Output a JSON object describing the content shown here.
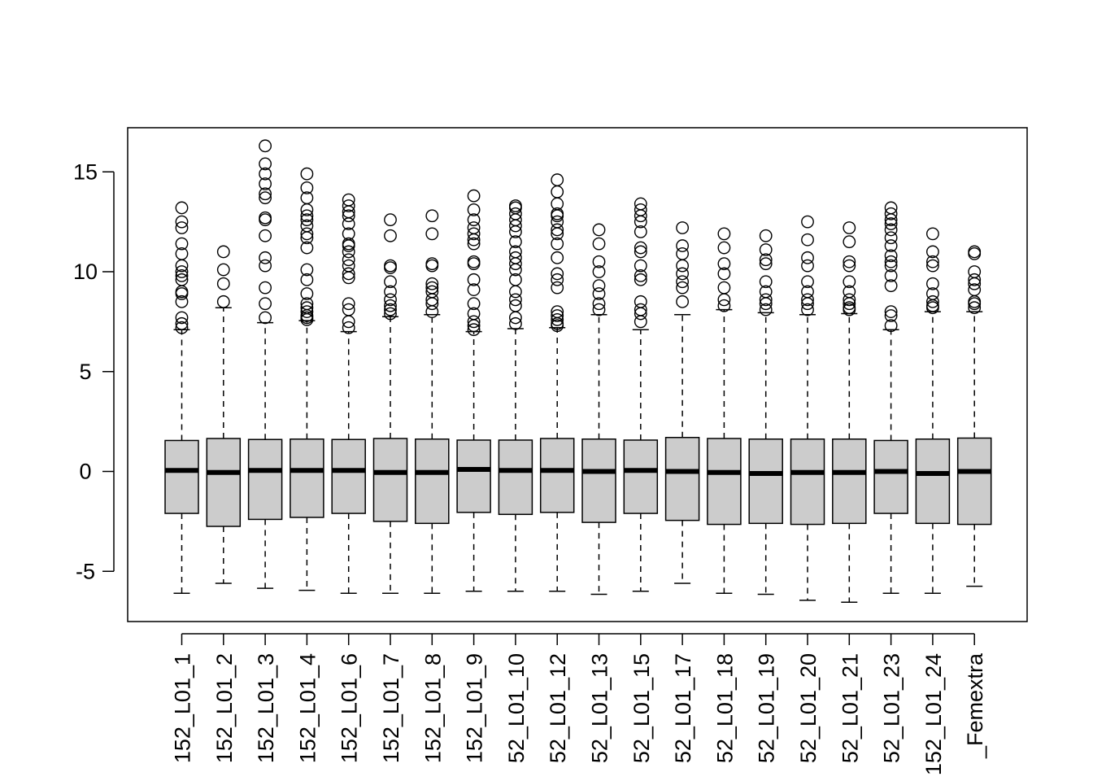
{
  "chart_data": {
    "type": "boxplot",
    "title": "",
    "xlabel": "",
    "ylabel": "",
    "ylim": [
      -7.5,
      17.2
    ],
    "yticks": [
      -5,
      0,
      5,
      10,
      15
    ],
    "ytick_labels": [
      "-5",
      "0",
      "5",
      "10",
      "15"
    ],
    "box_fill": "#cccccc",
    "line_color": "#000000",
    "categories": [
      "152_L01_1",
      "152_L01_2",
      "152_L01_3",
      "152_L01_4",
      "152_L01_6",
      "152_L01_7",
      "152_L01_8",
      "152_L01_9",
      "52_L01_10",
      "52_L01_12",
      "52_L01_13",
      "52_L01_15",
      "52_L01_17",
      "52_L01_18",
      "52_L01_19",
      "52_L01_20",
      "52_L01_21",
      "52_L01_23",
      "152_L01_24",
      "_Femextra"
    ],
    "boxes": [
      {
        "whisker_low": -6.1,
        "q1": -2.1,
        "median": 0.05,
        "q3": 1.55,
        "whisker_high": 7.1,
        "outliers": [
          7.2,
          7.4,
          7.7,
          8.5,
          8.9,
          9.0,
          9.6,
          9.8,
          10.0,
          10.3,
          10.9,
          11.4,
          12.2,
          12.5,
          13.2
        ]
      },
      {
        "whisker_low": -5.6,
        "q1": -2.75,
        "median": -0.05,
        "q3": 1.65,
        "whisker_high": 8.2,
        "outliers": [
          8.5,
          9.4,
          10.1,
          11.0
        ]
      },
      {
        "whisker_low": -5.85,
        "q1": -2.4,
        "median": 0.05,
        "q3": 1.6,
        "whisker_high": 7.45,
        "outliers": [
          7.7,
          8.4,
          9.2,
          10.3,
          10.7,
          11.8,
          12.6,
          12.7,
          13.7,
          13.9,
          14.4,
          14.9,
          15.4,
          16.3
        ]
      },
      {
        "whisker_low": -5.95,
        "q1": -2.3,
        "median": 0.05,
        "q3": 1.62,
        "whisker_high": 7.55,
        "outliers": [
          7.6,
          7.7,
          7.8,
          8.0,
          8.2,
          8.4,
          8.9,
          9.6,
          10.1,
          11.2,
          11.7,
          11.9,
          12.3,
          12.6,
          12.8,
          13.1,
          13.7,
          14.2,
          14.9
        ]
      },
      {
        "whisker_low": -6.1,
        "q1": -2.1,
        "median": 0.05,
        "q3": 1.6,
        "whisker_high": 7.0,
        "outliers": [
          7.2,
          7.5,
          8.1,
          8.4,
          9.7,
          9.9,
          10.3,
          10.6,
          11.0,
          11.3,
          11.4,
          11.9,
          12.4,
          12.8,
          13.0,
          13.3,
          13.6
        ]
      },
      {
        "whisker_low": -6.1,
        "q1": -2.5,
        "median": -0.05,
        "q3": 1.65,
        "whisker_high": 7.75,
        "outliers": [
          7.9,
          8.1,
          8.3,
          8.6,
          9.0,
          9.5,
          10.2,
          10.3,
          11.8,
          12.6
        ]
      },
      {
        "whisker_low": -6.1,
        "q1": -2.6,
        "median": -0.05,
        "q3": 1.62,
        "whisker_high": 7.85,
        "outliers": [
          8.0,
          8.4,
          8.6,
          9.0,
          9.2,
          9.4,
          10.3,
          10.4,
          11.9,
          12.8
        ]
      },
      {
        "whisker_low": -6.0,
        "q1": -2.05,
        "median": 0.1,
        "q3": 1.57,
        "whisker_high": 7.0,
        "outliers": [
          7.1,
          7.3,
          7.5,
          7.9,
          8.4,
          9.1,
          9.6,
          10.4,
          10.5,
          11.4,
          11.6,
          11.9,
          12.2,
          12.6,
          13.1,
          13.8
        ]
      },
      {
        "whisker_low": -6.0,
        "q1": -2.15,
        "median": 0.05,
        "q3": 1.57,
        "whisker_high": 7.15,
        "outliers": [
          7.4,
          7.7,
          8.3,
          8.6,
          9.0,
          9.6,
          10.1,
          10.4,
          10.7,
          11.0,
          11.5,
          12.0,
          12.3,
          12.6,
          12.9,
          13.2,
          13.3
        ]
      },
      {
        "whisker_low": -6.0,
        "q1": -2.05,
        "median": 0.05,
        "q3": 1.65,
        "whisker_high": 7.2,
        "outliers": [
          7.3,
          7.4,
          7.6,
          7.8,
          8.0,
          9.2,
          9.6,
          9.9,
          10.7,
          11.4,
          11.9,
          12.1,
          12.5,
          12.8,
          12.9,
          13.4,
          14.0,
          14.6
        ]
      },
      {
        "whisker_low": -6.15,
        "q1": -2.55,
        "median": 0.0,
        "q3": 1.62,
        "whisker_high": 7.85,
        "outliers": [
          8.1,
          8.4,
          8.9,
          9.3,
          10.0,
          10.5,
          11.4,
          12.1
        ]
      },
      {
        "whisker_low": -6.0,
        "q1": -2.1,
        "median": 0.05,
        "q3": 1.57,
        "whisker_high": 7.1,
        "outliers": [
          7.5,
          7.9,
          8.1,
          8.5,
          9.6,
          9.8,
          10.3,
          11.0,
          11.2,
          12.0,
          12.5,
          12.8,
          13.1,
          13.4
        ]
      },
      {
        "whisker_low": -5.6,
        "q1": -2.45,
        "median": 0.0,
        "q3": 1.7,
        "whisker_high": 7.85,
        "outliers": [
          8.5,
          9.2,
          9.5,
          9.9,
          10.3,
          10.9,
          11.3,
          12.2
        ]
      },
      {
        "whisker_low": -6.1,
        "q1": -2.65,
        "median": -0.05,
        "q3": 1.65,
        "whisker_high": 8.1,
        "outliers": [
          8.3,
          8.6,
          9.2,
          9.9,
          10.4,
          11.2,
          11.9
        ]
      },
      {
        "whisker_low": -6.15,
        "q1": -2.6,
        "median": -0.1,
        "q3": 1.62,
        "whisker_high": 7.95,
        "outliers": [
          8.1,
          8.4,
          8.6,
          9.0,
          9.5,
          10.4,
          10.6,
          11.1,
          11.8
        ]
      },
      {
        "whisker_low": -6.45,
        "q1": -2.65,
        "median": -0.05,
        "q3": 1.62,
        "whisker_high": 7.85,
        "outliers": [
          8.1,
          8.4,
          8.6,
          9.0,
          9.5,
          10.3,
          10.7,
          11.6,
          12.5
        ]
      },
      {
        "whisker_low": -6.55,
        "q1": -2.6,
        "median": -0.05,
        "q3": 1.62,
        "whisker_high": 7.9,
        "outliers": [
          8.1,
          8.2,
          8.4,
          8.6,
          9.0,
          9.5,
          10.3,
          10.5,
          11.5,
          12.2
        ]
      },
      {
        "whisker_low": -6.1,
        "q1": -2.1,
        "median": 0.0,
        "q3": 1.55,
        "whisker_high": 7.1,
        "outliers": [
          7.3,
          7.8,
          8.0,
          9.3,
          9.8,
          10.3,
          10.5,
          10.8,
          11.3,
          11.7,
          12.1,
          12.4,
          12.6,
          12.9,
          13.2
        ]
      },
      {
        "whisker_low": -6.1,
        "q1": -2.6,
        "median": -0.1,
        "q3": 1.62,
        "whisker_high": 8.0,
        "outliers": [
          8.2,
          8.3,
          8.5,
          8.9,
          9.4,
          10.3,
          10.5,
          11.0,
          11.9
        ]
      },
      {
        "whisker_low": -5.75,
        "q1": -2.65,
        "median": 0.0,
        "q3": 1.67,
        "whisker_high": 8.0,
        "outliers": [
          8.2,
          8.4,
          8.5,
          9.1,
          9.4,
          9.6,
          10.0,
          10.9,
          11.0
        ]
      }
    ]
  }
}
